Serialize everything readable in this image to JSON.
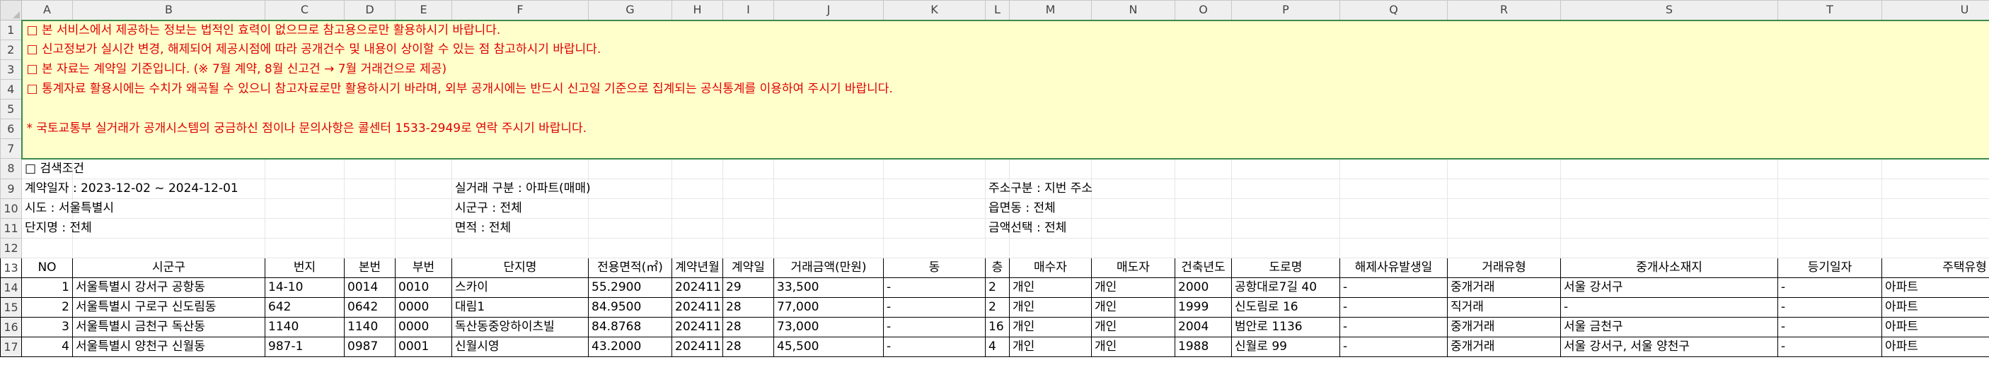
{
  "columns": [
    "A",
    "B",
    "C",
    "D",
    "E",
    "F",
    "G",
    "H",
    "I",
    "J",
    "K",
    "L",
    "M",
    "N",
    "O",
    "P",
    "Q",
    "R",
    "S",
    "T",
    "U"
  ],
  "rows": [
    "1",
    "2",
    "3",
    "4",
    "5",
    "6",
    "7",
    "8",
    "9",
    "10",
    "11",
    "12",
    "13",
    "14",
    "15",
    "16",
    "17"
  ],
  "notices": [
    "□ 본 서비스에서 제공하는 정보는 법적인 효력이 없으므로 참고용으로만 활용하시기 바랍니다.",
    "□ 신고정보가 실시간 변경, 해제되어 제공시점에 따라 공개건수 및 내용이 상이할 수 있는 점 참고하시기 바랍니다.",
    "□ 본 자료는 계약일 기준입니다. (※ 7월 계약, 8월 신고건 → 7월 거래건으로  제공)",
    "□ 통계자료 활용시에는 수치가 왜곡될 수 있으니 참고자료로만 활용하시기  바라며,  외부 공개시에는 반드시 신고일 기준으로 집계되는 공식통계를 이용하여 주시기 바랍니다.",
    "",
    "* 국토교통부 실거래가 공개시스템의 궁금하신 점이나 문의사항은 콜센터 1533-2949로 연락 주시기 바랍니다.",
    ""
  ],
  "search": {
    "title": "□ 검색조건",
    "contract_date": "계약일자 : 2023-12-02 ~ 2024-12-01",
    "deal_type": "실거래 구분 : 아파트(매매)",
    "address_type": "주소구분 : 지번 주소",
    "sido": "시도 : 서울특별시",
    "sigungu": "시군구 : 전체",
    "eupmyeondong": "읍면동 : 전체",
    "complex": "단지명 : 전체",
    "area": "면적 : 전체",
    "amount": "금액선택 : 전체"
  },
  "headers": [
    "NO",
    "시군구",
    "번지",
    "본번",
    "부번",
    "단지명",
    "전용면적(㎡)",
    "계약년월",
    "계약일",
    "거래금액(만원)",
    "동",
    "층",
    "매수자",
    "매도자",
    "건축년도",
    "도로명",
    "해제사유발생일",
    "거래유형",
    "중개사소재지",
    "등기일자",
    "주택유형"
  ],
  "records": [
    [
      "1",
      "서울특별시 강서구 공항동",
      "14-10",
      "0014",
      "0010",
      "스카이",
      "55.2900",
      "202411",
      "29",
      "33,500",
      "-",
      "2",
      "개인",
      "개인",
      "2000",
      "공항대로7길 40",
      "-",
      "중개거래",
      "서울 강서구",
      "-",
      "아파트"
    ],
    [
      "2",
      "서울특별시 구로구 신도림동",
      "642",
      "0642",
      "0000",
      "대림1",
      "84.9500",
      "202411",
      "28",
      "77,000",
      "-",
      "2",
      "개인",
      "개인",
      "1999",
      "신도림로 16",
      "-",
      "직거래",
      "-",
      "-",
      "아파트"
    ],
    [
      "3",
      "서울특별시 금천구 독산동",
      "1140",
      "1140",
      "0000",
      "독산동중앙하이츠빌",
      "84.8768",
      "202411",
      "28",
      "73,000",
      "-",
      "16",
      "개인",
      "개인",
      "2004",
      "범안로 1136",
      "-",
      "중개거래",
      "서울 금천구",
      "-",
      "아파트"
    ],
    [
      "4",
      "서울특별시 양천구 신월동",
      "987-1",
      "0987",
      "0001",
      "신월시영",
      "43.2000",
      "202411",
      "28",
      "45,500",
      "-",
      "4",
      "개인",
      "개인",
      "1988",
      "신월로 99",
      "-",
      "중개거래",
      "서울 강서구, 서울 양천구",
      "-",
      "아파트"
    ]
  ]
}
